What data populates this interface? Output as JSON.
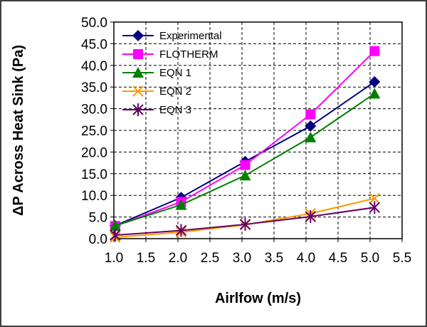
{
  "chart_data": {
    "type": "line",
    "title": "",
    "xlabel": "Airlfow (m/s)",
    "ylabel": "ΔP Across Heat Sink (Pa)",
    "xlim": [
      1.0,
      5.5
    ],
    "ylim": [
      0.0,
      50.0
    ],
    "x_ticks": [
      "1.0",
      "1.5",
      "2.0",
      "2.5",
      "3.0",
      "3.5",
      "4.0",
      "4.5",
      "5.0",
      "5.5"
    ],
    "y_ticks": [
      "0.0",
      "5.0",
      "10.0",
      "15.0",
      "20.0",
      "25.0",
      "30.0",
      "35.0",
      "40.0",
      "45.0",
      "50.0"
    ],
    "grid": true,
    "legend_position": "top-left",
    "series": [
      {
        "name": "Experimental",
        "color": "#000080",
        "marker": "diamond",
        "points": [
          [
            1.02,
            3.0
          ],
          [
            2.05,
            9.5
          ],
          [
            3.05,
            17.8
          ],
          [
            4.07,
            26.0
          ],
          [
            5.07,
            36.2
          ]
        ]
      },
      {
        "name": "FLOTHERM",
        "color": "#FF00FF",
        "marker": "square",
        "points": [
          [
            1.02,
            2.9
          ],
          [
            2.05,
            8.5
          ],
          [
            3.05,
            17.0
          ],
          [
            4.07,
            28.7
          ],
          [
            5.07,
            43.3
          ]
        ]
      },
      {
        "name": "EQN 1",
        "color": "#008000",
        "marker": "triangle",
        "points": [
          [
            1.02,
            3.0
          ],
          [
            2.05,
            7.8
          ],
          [
            3.05,
            14.6
          ],
          [
            4.07,
            23.4
          ],
          [
            5.07,
            33.5
          ]
        ]
      },
      {
        "name": "EQN 2",
        "color": "#FF9900",
        "marker": "x",
        "points": [
          [
            1.02,
            0.3
          ],
          [
            2.05,
            1.5
          ],
          [
            3.05,
            3.2
          ],
          [
            4.07,
            5.8
          ],
          [
            5.07,
            9.3
          ]
        ]
      },
      {
        "name": "EQN 3",
        "color": "#660066",
        "marker": "star",
        "points": [
          [
            1.02,
            0.8
          ],
          [
            2.05,
            1.9
          ],
          [
            3.05,
            3.3
          ],
          [
            4.07,
            5.1
          ],
          [
            5.07,
            7.2
          ]
        ]
      }
    ]
  }
}
